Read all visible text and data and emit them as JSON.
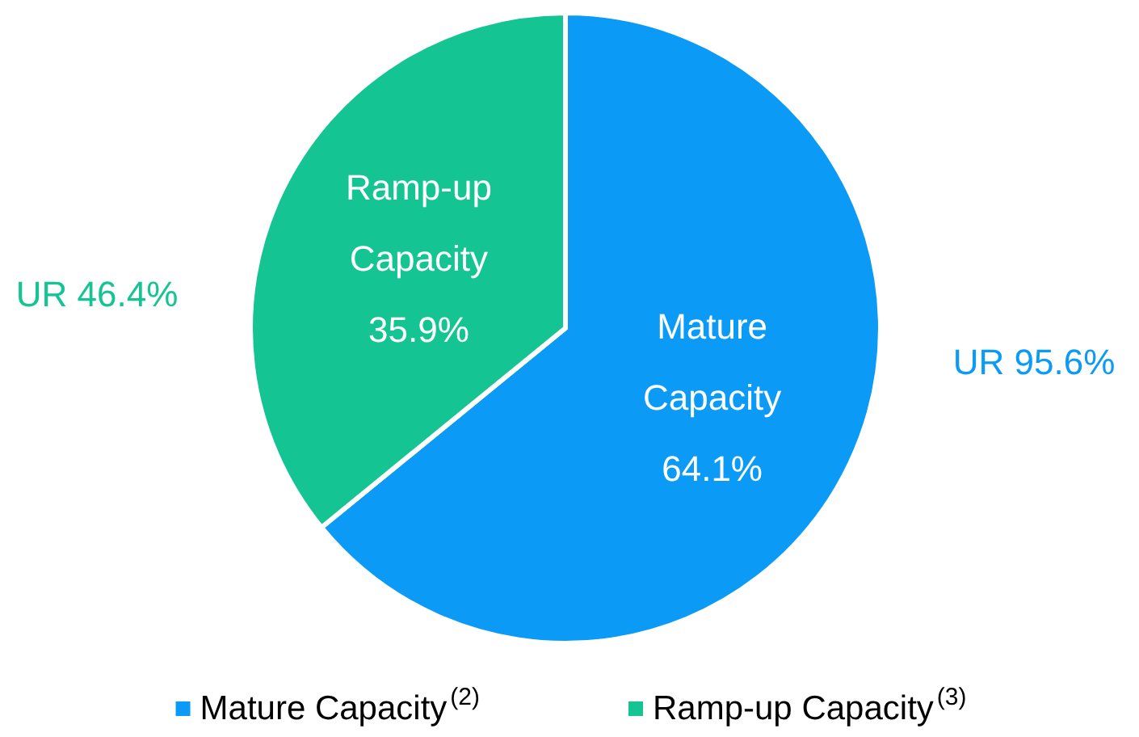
{
  "chart_data": {
    "type": "pie",
    "categories": [
      "Mature Capacity",
      "Ramp-up Capacity"
    ],
    "values": [
      64.1,
      35.9
    ],
    "colors": [
      "#0b9bf7",
      "#14c492"
    ],
    "data_labels": true,
    "value_labels": [
      "64.1%",
      "35.9%"
    ],
    "annotations": [
      "UR 95.6%",
      "UR 46.4%",
      "(2)",
      "(3)"
    ],
    "legend": "bottom"
  }
}
